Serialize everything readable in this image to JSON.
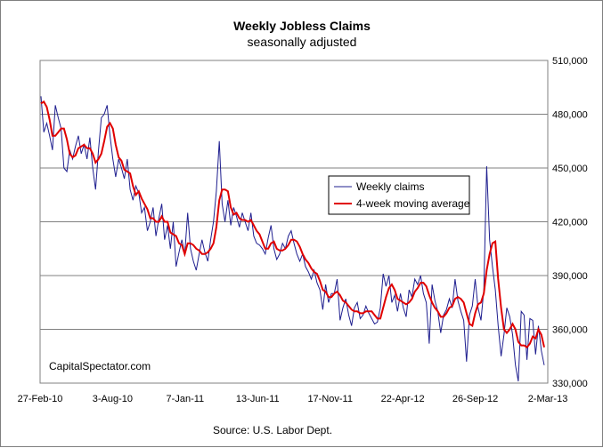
{
  "chart_data": {
    "type": "line",
    "title": "Weekly Jobless Claims",
    "subtitle": "seasonally adjusted",
    "source": "Source: U.S. Labor Dept.",
    "watermark": "CapitalSpectator.com",
    "ylim": [
      330000,
      510000
    ],
    "y_ticks": [
      330000,
      360000,
      390000,
      420000,
      450000,
      480000,
      510000
    ],
    "y_tick_labels": [
      "330,000",
      "360,000",
      "390,000",
      "420,000",
      "450,000",
      "480,000",
      "510,000"
    ],
    "x_tick_labels": [
      "27-Feb-10",
      "3-Aug-10",
      "7-Jan-11",
      "13-Jun-11",
      "17-Nov-11",
      "22-Apr-12",
      "26-Sep-12",
      "2-Mar-13"
    ],
    "grid": "horizontal",
    "legend_position": "center-right",
    "colors": {
      "weekly": "#1f1f8f",
      "average": "#e00000",
      "grid": "#808080"
    },
    "series": [
      {
        "name": "Weekly claims",
        "values": [
          490000,
          470000,
          475000,
          468000,
          460000,
          485000,
          478000,
          472000,
          450000,
          448000,
          460000,
          455000,
          462000,
          468000,
          458000,
          463000,
          455000,
          467000,
          450000,
          438000,
          460000,
          478000,
          480000,
          485000,
          468000,
          455000,
          445000,
          455000,
          450000,
          444000,
          455000,
          438000,
          432000,
          440000,
          436000,
          425000,
          428000,
          415000,
          420000,
          428000,
          412000,
          422000,
          430000,
          410000,
          418000,
          405000,
          420000,
          395000,
          403000,
          410000,
          402000,
          425000,
          405000,
          398000,
          393000,
          402000,
          410000,
          403000,
          398000,
          410000,
          420000,
          437000,
          465000,
          430000,
          420000,
          432000,
          418000,
          428000,
          423000,
          417000,
          425000,
          420000,
          415000,
          425000,
          412000,
          408000,
          407000,
          405000,
          402000,
          411000,
          418000,
          405000,
          399000,
          402000,
          408000,
          405000,
          412000,
          415000,
          408000,
          402000,
          398000,
          402000,
          395000,
          392000,
          388000,
          393000,
          386000,
          382000,
          371000,
          385000,
          375000,
          380000,
          380000,
          388000,
          365000,
          372000,
          377000,
          368000,
          362000,
          372000,
          375000,
          366000,
          368000,
          373000,
          369000,
          366000,
          363000,
          364000,
          372000,
          391000,
          384000,
          390000,
          375000,
          379000,
          370000,
          380000,
          372000,
          367000,
          382000,
          378000,
          388000,
          385000,
          390000,
          380000,
          375000,
          352000,
          385000,
          376000,
          370000,
          358000,
          368000,
          371000,
          377000,
          372000,
          388000,
          376000,
          370000,
          365000,
          342000,
          368000,
          373000,
          388000,
          372000,
          365000,
          382000,
          451000,
          410000,
          395000,
          382000,
          362000,
          345000,
          357000,
          372000,
          367000,
          357000,
          340000,
          331000,
          370000,
          368000,
          343000,
          366000,
          365000,
          346000,
          362000,
          348000,
          340000
        ]
      },
      {
        "name": "4-week moving average",
        "values": [
          486000,
          487000,
          484000,
          477000,
          468000,
          468000,
          470000,
          472000,
          472000,
          466000,
          458000,
          456000,
          457000,
          461000,
          462000,
          463000,
          461000,
          461000,
          458000,
          453000,
          455000,
          458000,
          465000,
          473000,
          475000,
          472000,
          463000,
          456000,
          454000,
          449000,
          448000,
          447000,
          440000,
          435000,
          437000,
          433000,
          430000,
          427000,
          422000,
          422000,
          420000,
          420000,
          423000,
          420000,
          420000,
          414000,
          413000,
          412000,
          408000,
          407000,
          402000,
          408000,
          408000,
          407000,
          405000,
          404000,
          402000,
          402000,
          403000,
          405000,
          408000,
          417000,
          432000,
          438000,
          438000,
          437000,
          428000,
          424000,
          425000,
          422000,
          421000,
          421000,
          420000,
          421000,
          418000,
          415000,
          413000,
          409000,
          405000,
          405000,
          408000,
          409000,
          405000,
          404000,
          404000,
          405000,
          407000,
          410000,
          410000,
          409000,
          406000,
          402000,
          399000,
          397000,
          394000,
          392000,
          391000,
          387000,
          382000,
          381000,
          378000,
          378000,
          380000,
          381000,
          379000,
          376000,
          375000,
          373000,
          371000,
          370000,
          370000,
          369000,
          369000,
          370000,
          370000,
          370000,
          368000,
          366000,
          366000,
          372000,
          378000,
          383000,
          385000,
          382000,
          377000,
          376000,
          375000,
          374000,
          375000,
          377000,
          381000,
          383000,
          386000,
          386000,
          384000,
          379000,
          375000,
          372000,
          370000,
          367000,
          367000,
          369000,
          372000,
          373000,
          377000,
          378000,
          377000,
          375000,
          369000,
          363000,
          362000,
          369000,
          374000,
          375000,
          380000,
          393000,
          402000,
          408000,
          409000,
          388000,
          372000,
          360000,
          358000,
          360000,
          363000,
          360000,
          353000,
          351000,
          351000,
          350000,
          352000,
          356000,
          355000,
          360000,
          357000,
          350000
        ]
      }
    ]
  }
}
